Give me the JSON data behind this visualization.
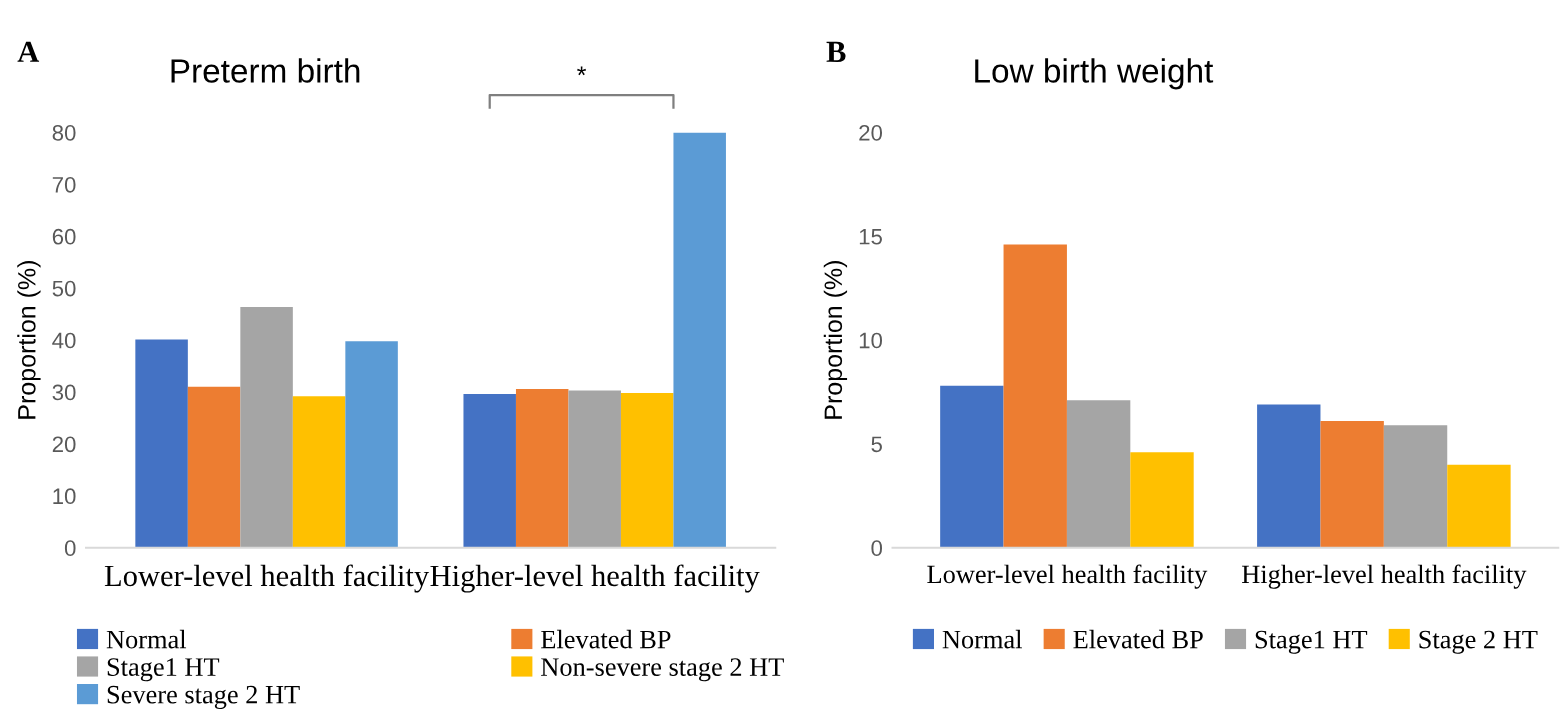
{
  "chart_data": [
    {
      "type": "bar",
      "title": "Preterm birth",
      "ylabel": "Proportion (%)",
      "categories": [
        "Lower-level health facility",
        "Higher-level health facility"
      ],
      "series": [
        {
          "name": "Normal",
          "color": "#4472c4",
          "values": [
            40.1,
            29.6
          ]
        },
        {
          "name": "Elevated BP",
          "color": "#ed7d31",
          "values": [
            31.0,
            30.6
          ]
        },
        {
          "name": "Stage1 HT",
          "color": "#a5a5a5",
          "values": [
            46.4,
            30.3
          ]
        },
        {
          "name": "Non-severe stage 2 HT",
          "color": "#ffc000",
          "values": [
            29.2,
            29.8
          ]
        },
        {
          "name": "Severe stage 2 HT",
          "color": "#5b9bd5",
          "values": [
            39.8,
            80.0
          ]
        }
      ],
      "ylim": [
        0,
        80
      ],
      "yticks": [
        0,
        10,
        20,
        30,
        40,
        50,
        60,
        70,
        80
      ],
      "grid": false,
      "legend": "bottom",
      "annotations": [
        "A",
        "*"
      ]
    },
    {
      "type": "bar",
      "title": "Low birth weight",
      "ylabel": "Proportion (%)",
      "categories": [
        "Lower-level health facility",
        "Higher-level health facility"
      ],
      "series": [
        {
          "name": "Normal",
          "color": "#4472c4",
          "values": [
            7.8,
            6.9
          ]
        },
        {
          "name": "Elevated BP",
          "color": "#ed7d31",
          "values": [
            14.6,
            6.1
          ]
        },
        {
          "name": "Stage1 HT",
          "color": "#a5a5a5",
          "values": [
            7.1,
            5.9
          ]
        },
        {
          "name": "Stage 2 HT",
          "color": "#ffc000",
          "values": [
            4.6,
            4.0
          ]
        }
      ],
      "ylim": [
        0,
        20
      ],
      "yticks": [
        0,
        5,
        10,
        15,
        20
      ],
      "grid": false,
      "legend": "bottom",
      "annotations": [
        "B"
      ]
    }
  ]
}
